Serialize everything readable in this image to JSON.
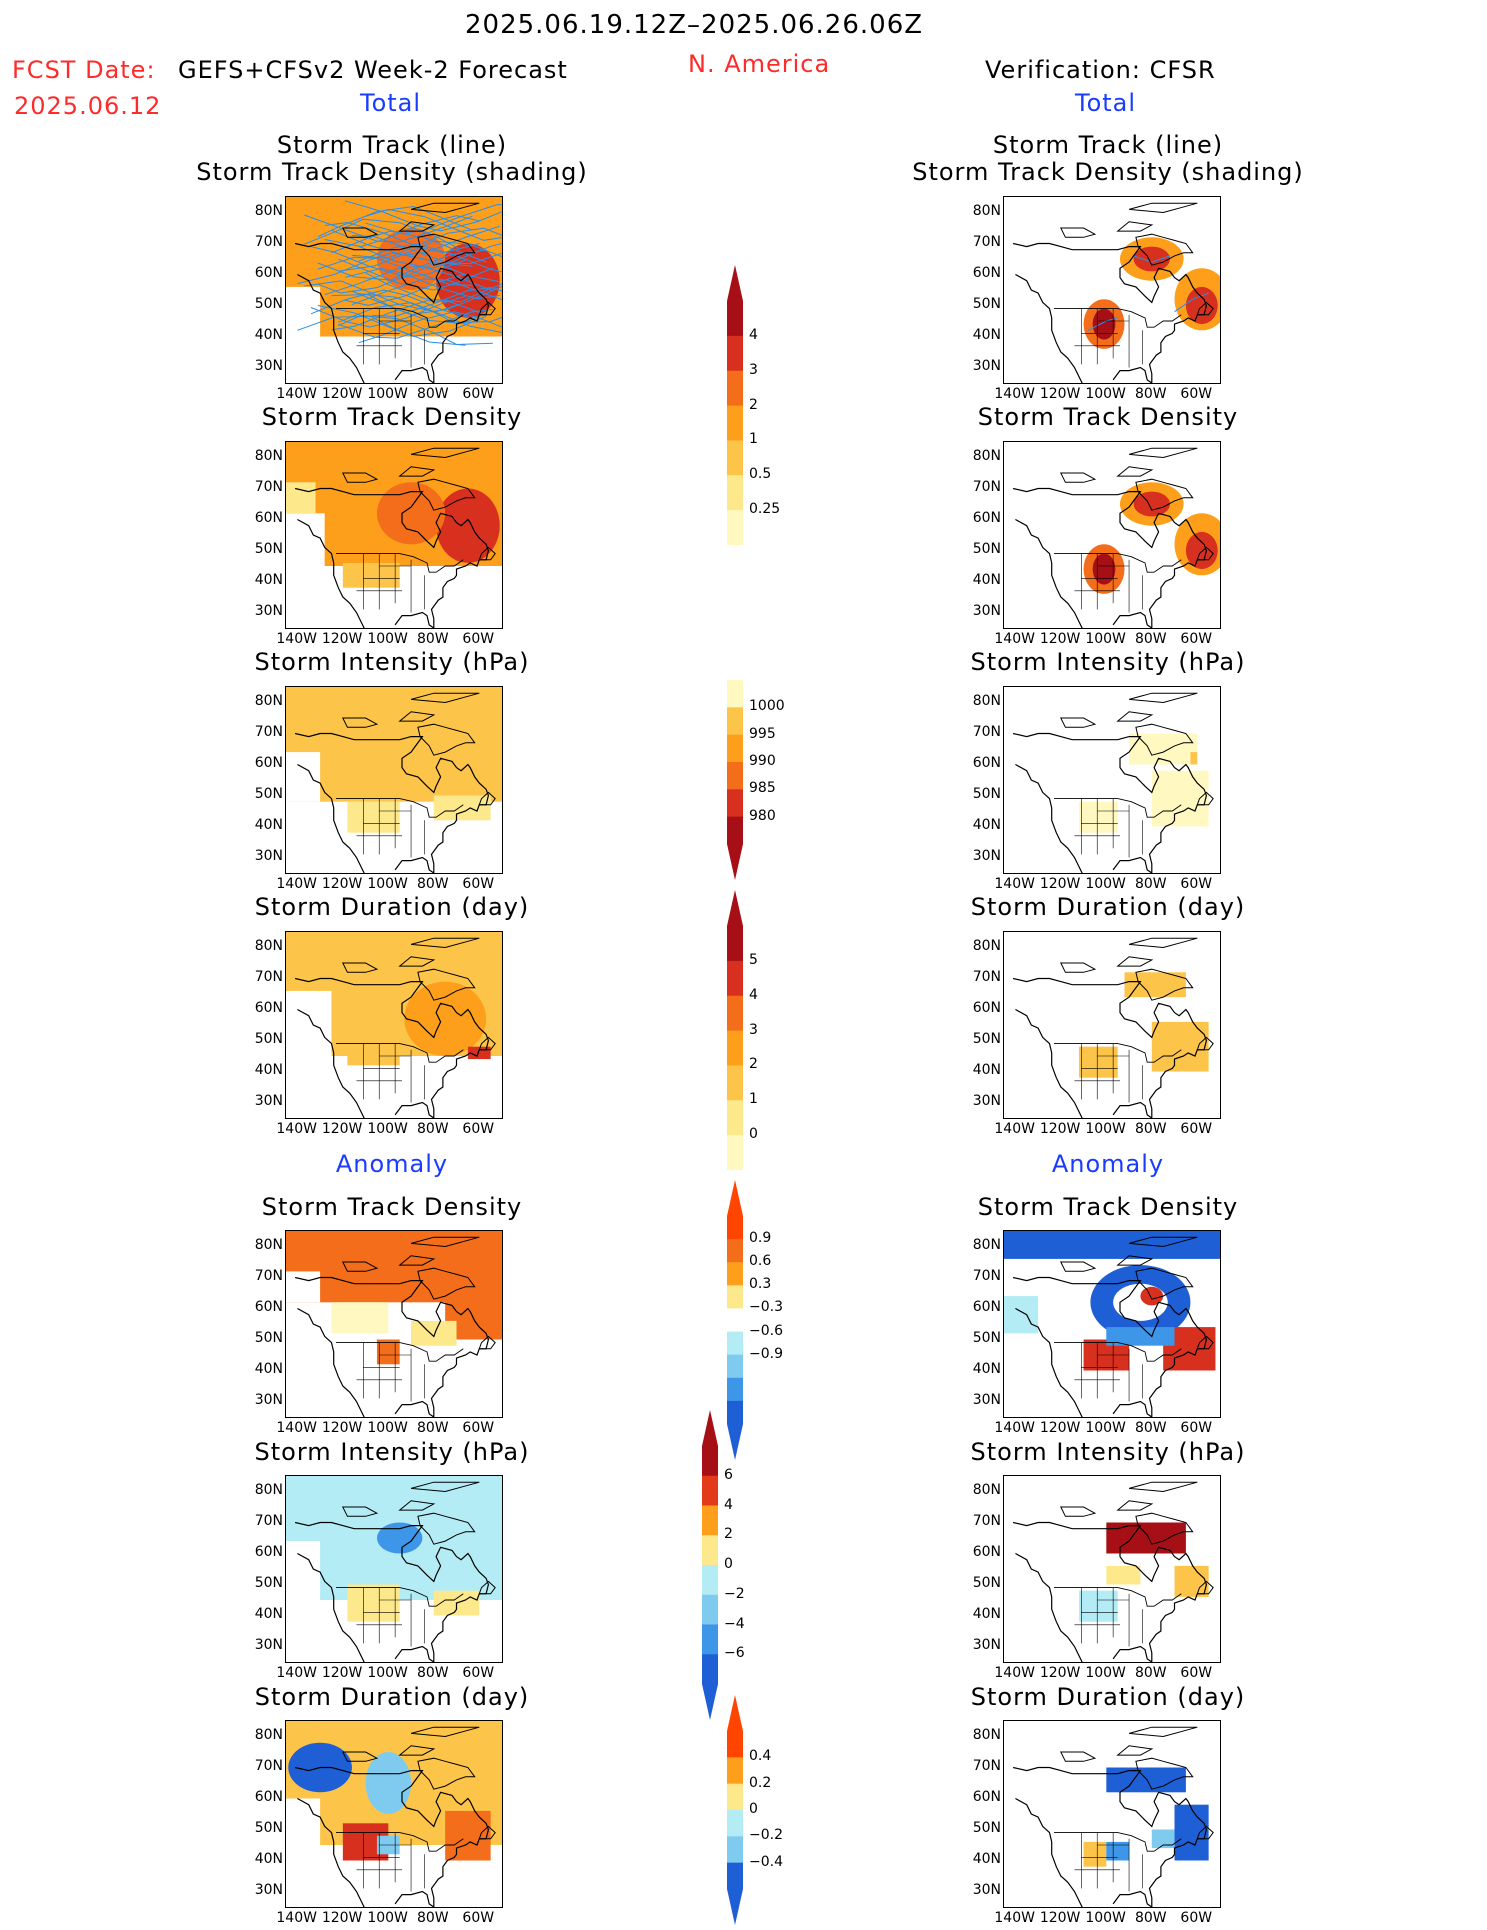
{
  "header": {
    "period": "2025.06.19.12Z–2025.06.26.06Z",
    "region": "N. America",
    "fcst_label": "FCST Date:",
    "fcst_model": "GEFS+CFSv2 Week-2 Forecast",
    "fcst_date": "2025.06.12",
    "verification": "Verification: CFSR",
    "total_left": "Total",
    "total_right": "Total",
    "anomaly_left": "Anomaly",
    "anomaly_right": "Anomaly"
  },
  "axes": {
    "lat_labels": [
      "80N",
      "70N",
      "60N",
      "50N",
      "40N",
      "30N"
    ],
    "lon_labels": [
      "140W",
      "120W",
      "100W",
      "80W",
      "60W"
    ]
  },
  "panels": {
    "p1": {
      "title1": "Storm Track (line)",
      "title2": "Storm Track Density (shading)"
    },
    "p2": {
      "title": "Storm Track Density"
    },
    "p3": {
      "title": "Storm Intensity (hPa)"
    },
    "p4": {
      "title": "Storm Duration (day)"
    },
    "p5": {
      "title": "Storm Track Density"
    },
    "p6": {
      "title": "Storm Intensity (hPa)"
    },
    "p7": {
      "title": "Storm Duration (day)"
    }
  },
  "colorbars": {
    "density": {
      "labels": [
        "4",
        "3",
        "2",
        "1",
        "0.5",
        "0.25"
      ],
      "colors": [
        "#a50f15",
        "#d7301f",
        "#f46d1b",
        "#fd9f1a",
        "#fdc44a",
        "#fde88b",
        "#fff8c0"
      ]
    },
    "intensity": {
      "labels": [
        "1000",
        "995",
        "990",
        "985",
        "980"
      ],
      "colors": [
        "#fff8c0",
        "#fdc44a",
        "#fd9f1a",
        "#f46d1b",
        "#d7301f",
        "#a50f15"
      ]
    },
    "duration": {
      "labels": [
        "5",
        "4",
        "3",
        "2",
        "1",
        "0"
      ],
      "colors": [
        "#a50f15",
        "#d7301f",
        "#f46d1b",
        "#fd9f1a",
        "#fdc44a",
        "#fde88b",
        "#fff8c0"
      ]
    },
    "anom_density": {
      "labels": [
        "0.9",
        "0.6",
        "0.3",
        "−0.3",
        "−0.6",
        "−0.9"
      ],
      "colors": [
        "#ff4500",
        "#f46d1b",
        "#fd9f1a",
        "#fde88b",
        "#ffffff",
        "#b3ecf5",
        "#7fcbf0",
        "#3e96e8",
        "#1e5fd6"
      ]
    },
    "anom_intensity": {
      "labels": [
        "6",
        "4",
        "2",
        "0",
        "−2",
        "−4",
        "−6"
      ],
      "colors": [
        "#a50f15",
        "#e33a1a",
        "#fd9f1a",
        "#fde88b",
        "#b3ecf5",
        "#7fcbf0",
        "#3e96e8",
        "#1e5fd6"
      ]
    },
    "anom_duration": {
      "labels": [
        "0.4",
        "0.2",
        "0",
        "−0.2",
        "−0.4"
      ],
      "colors": [
        "#ff4500",
        "#fd9f1a",
        "#fde88b",
        "#b3ecf5",
        "#7fcbf0",
        "#1e5fd6"
      ]
    }
  },
  "chart_data": [
    {
      "type": "heatmap",
      "title": "Storm Track (line) / Storm Track Density (shading)",
      "series_group": "Total",
      "source": "GEFS+CFSv2 Week-2 Forecast",
      "ylim": [
        25,
        85
      ],
      "xlim": [
        -145,
        -50
      ]
    },
    {
      "type": "heatmap",
      "title": "Storm Track (line) / Storm Track Density (shading)",
      "series_group": "Total",
      "source": "CFSR",
      "ylim": [
        25,
        85
      ],
      "xlim": [
        -145,
        -50
      ]
    },
    {
      "type": "heatmap",
      "title": "Storm Track Density",
      "series_group": "Total",
      "source": "GEFS+CFSv2 Week-2 Forecast"
    },
    {
      "type": "heatmap",
      "title": "Storm Track Density",
      "series_group": "Total",
      "source": "CFSR"
    },
    {
      "type": "heatmap",
      "title": "Storm Intensity (hPa)",
      "series_group": "Total",
      "source": "GEFS+CFSv2 Week-2 Forecast"
    },
    {
      "type": "heatmap",
      "title": "Storm Intensity (hPa)",
      "series_group": "Total",
      "source": "CFSR"
    },
    {
      "type": "heatmap",
      "title": "Storm Duration (day)",
      "series_group": "Total",
      "source": "GEFS+CFSv2 Week-2 Forecast"
    },
    {
      "type": "heatmap",
      "title": "Storm Duration (day)",
      "series_group": "Total",
      "source": "CFSR"
    },
    {
      "type": "heatmap",
      "title": "Storm Track Density",
      "series_group": "Anomaly",
      "source": "GEFS+CFSv2 Week-2 Forecast"
    },
    {
      "type": "heatmap",
      "title": "Storm Track Density",
      "series_group": "Anomaly",
      "source": "CFSR"
    },
    {
      "type": "heatmap",
      "title": "Storm Intensity (hPa)",
      "series_group": "Anomaly",
      "source": "GEFS+CFSv2 Week-2 Forecast"
    },
    {
      "type": "heatmap",
      "title": "Storm Intensity (hPa)",
      "series_group": "Anomaly",
      "source": "CFSR"
    },
    {
      "type": "heatmap",
      "title": "Storm Duration (day)",
      "series_group": "Anomaly",
      "source": "GEFS+CFSv2 Week-2 Forecast"
    },
    {
      "type": "heatmap",
      "title": "Storm Duration (day)",
      "series_group": "Anomaly",
      "source": "CFSR"
    }
  ]
}
